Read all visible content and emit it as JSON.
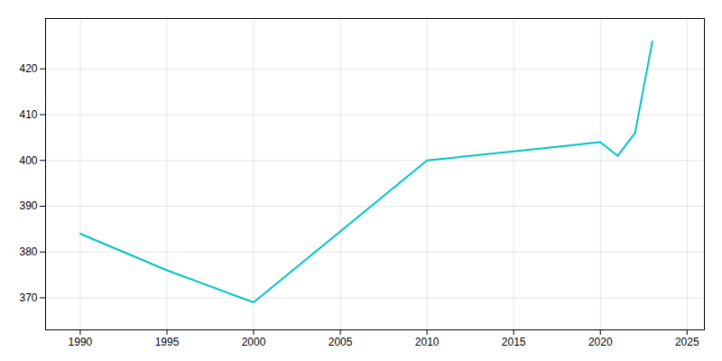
{
  "chart_data": {
    "type": "line",
    "x": [
      1990,
      1995,
      2000,
      2010,
      2015,
      2020,
      2021,
      2022,
      2023
    ],
    "values": [
      384,
      376,
      369,
      400,
      402,
      404,
      401,
      406,
      426
    ],
    "color": "#00C4C4",
    "xlim": [
      1988,
      2026
    ],
    "ylim": [
      363,
      431
    ],
    "xticks": [
      1990,
      1995,
      2000,
      2005,
      2010,
      2015,
      2020,
      2025
    ],
    "yticks": [
      370,
      380,
      390,
      400,
      410,
      420
    ],
    "grid": true
  }
}
